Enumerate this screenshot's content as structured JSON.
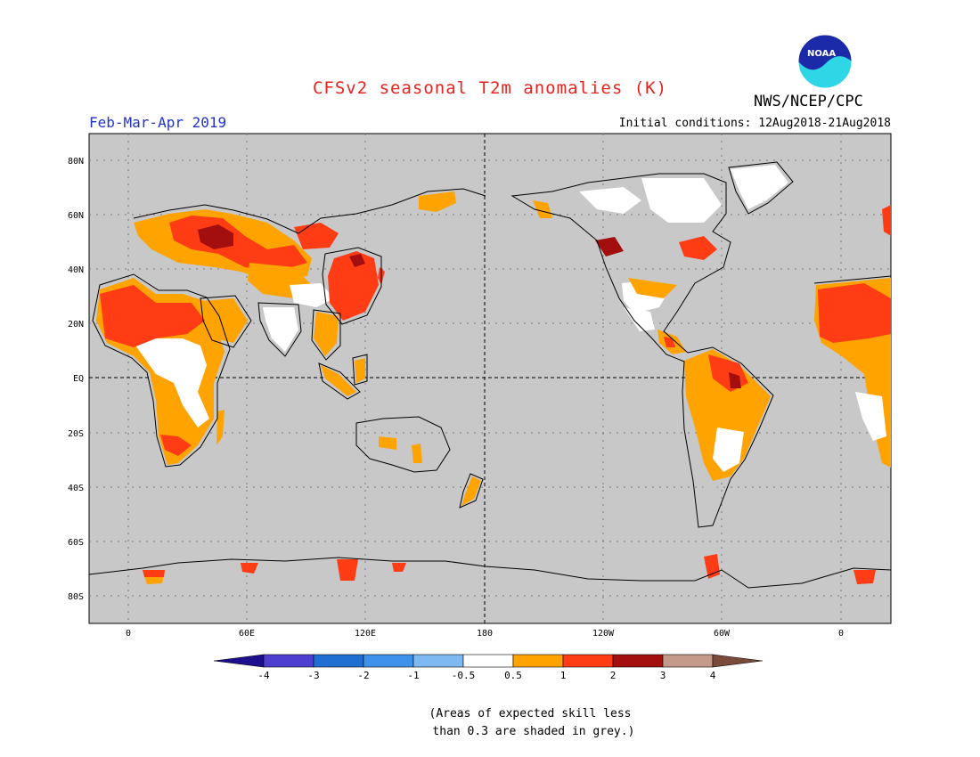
{
  "header": {
    "title": "CFSv2 seasonal T2m anomalies (K)",
    "season": "Feb-Mar-Apr 2019",
    "initial_conditions": "Initial conditions: 12Aug2018-21Aug2018",
    "agency": "NWS/NCEP/CPC",
    "logo_text": "NOAA"
  },
  "colors": {
    "title": "#e8231f",
    "season": "#2233cc",
    "ocean_grey": "#c8c8c8",
    "white_band": "#ffffff",
    "orange": "#ffa300",
    "red_orange": "#ff3c14",
    "dark_red": "#a30f0f",
    "logo_blue": "#1a2aa8",
    "logo_cyan": "#2fd6e6"
  },
  "map": {
    "lat_labels": [
      "80N",
      "60N",
      "40N",
      "20N",
      "EQ",
      "20S",
      "40S",
      "60S",
      "80S"
    ],
    "lon_labels": [
      "0",
      "60E",
      "120E",
      "180",
      "120W",
      "60W",
      "0"
    ]
  },
  "colorbar": {
    "colors": [
      "#1e0f8c",
      "#4d3fd0",
      "#1f6fd2",
      "#3d92ea",
      "#7eb9f2",
      "#ffffff",
      "#ffa300",
      "#ff3c14",
      "#a30f0f",
      "#c49a8a",
      "#7a4a3a"
    ],
    "tick_labels": [
      "-4",
      "-3",
      "-2",
      "-1",
      "-0.5",
      "0.5",
      "1",
      "2",
      "3",
      "4"
    ]
  },
  "footnote": "(Areas of expected skill less\n than 0.3 are shaded in grey.)"
}
